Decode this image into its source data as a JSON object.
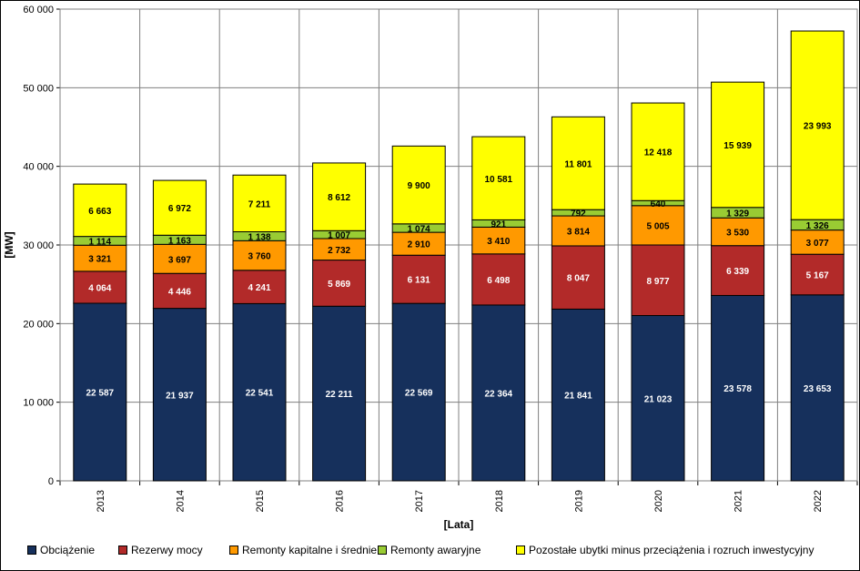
{
  "chart_data": {
    "type": "bar",
    "stacked": true,
    "categories": [
      "2013",
      "2014",
      "2015",
      "2016",
      "2017",
      "2018",
      "2019",
      "2020",
      "2021",
      "2022"
    ],
    "series": [
      {
        "name": "Obciążenie",
        "color": "#16305c",
        "values": [
          22587,
          21937,
          22541,
          22211,
          22569,
          22364,
          21841,
          21023,
          23578,
          23653
        ],
        "labels": [
          "22 587",
          "21 937",
          "22 541",
          "22 211",
          "22 569",
          "22 364",
          "21 841",
          "21 023",
          "23 578",
          "23 653"
        ]
      },
      {
        "name": "Rezerwy mocy",
        "color": "#b22a29",
        "values": [
          4064,
          4446,
          4241,
          5869,
          6131,
          6498,
          8047,
          8977,
          6339,
          5167
        ],
        "labels": [
          "4 064",
          "4 446",
          "4 241",
          "5 869",
          "6 131",
          "6 498",
          "8 047",
          "8 977",
          "6 339",
          "5 167"
        ]
      },
      {
        "name": "Remonty kapitalne i średnie",
        "color": "#ff9900",
        "values": [
          3321,
          3697,
          3760,
          2732,
          2910,
          3410,
          3814,
          5005,
          3530,
          3077
        ],
        "labels": [
          "3 321",
          "3 697",
          "3 760",
          "2 732",
          "2 910",
          "3 410",
          "3 814",
          "5 005",
          "3 530",
          "3 077"
        ]
      },
      {
        "name": "Remonty awaryjne",
        "color": "#99cc33",
        "values": [
          1114,
          1163,
          1138,
          1007,
          1074,
          921,
          792,
          640,
          1329,
          1326
        ],
        "labels": [
          "1 114",
          "1 163",
          "1 138",
          "1 007",
          "1 074",
          "921",
          "792",
          "640",
          "1 329",
          "1 326"
        ]
      },
      {
        "name": "Pozostałe ubytki minus przeciążenia i rozruch inwestycyjny",
        "color": "#ffff00",
        "values": [
          6663,
          6972,
          7211,
          8612,
          9900,
          10581,
          11801,
          12418,
          15939,
          23993
        ],
        "labels": [
          "6 663",
          "6 972",
          "7 211",
          "8 612",
          "9 900",
          "10 581",
          "11 801",
          "12 418",
          "15 939",
          "23 993"
        ]
      }
    ],
    "ylim": [
      0,
      60000
    ],
    "yticks": [
      0,
      10000,
      20000,
      30000,
      40000,
      50000,
      60000
    ],
    "ytick_labels": [
      "0",
      "10 000",
      "20 000",
      "30 000",
      "40 000",
      "50 000",
      "60 000"
    ],
    "xlabel": "[Lata]",
    "ylabel": "[MW]",
    "grid": true,
    "legend_position": "bottom"
  }
}
